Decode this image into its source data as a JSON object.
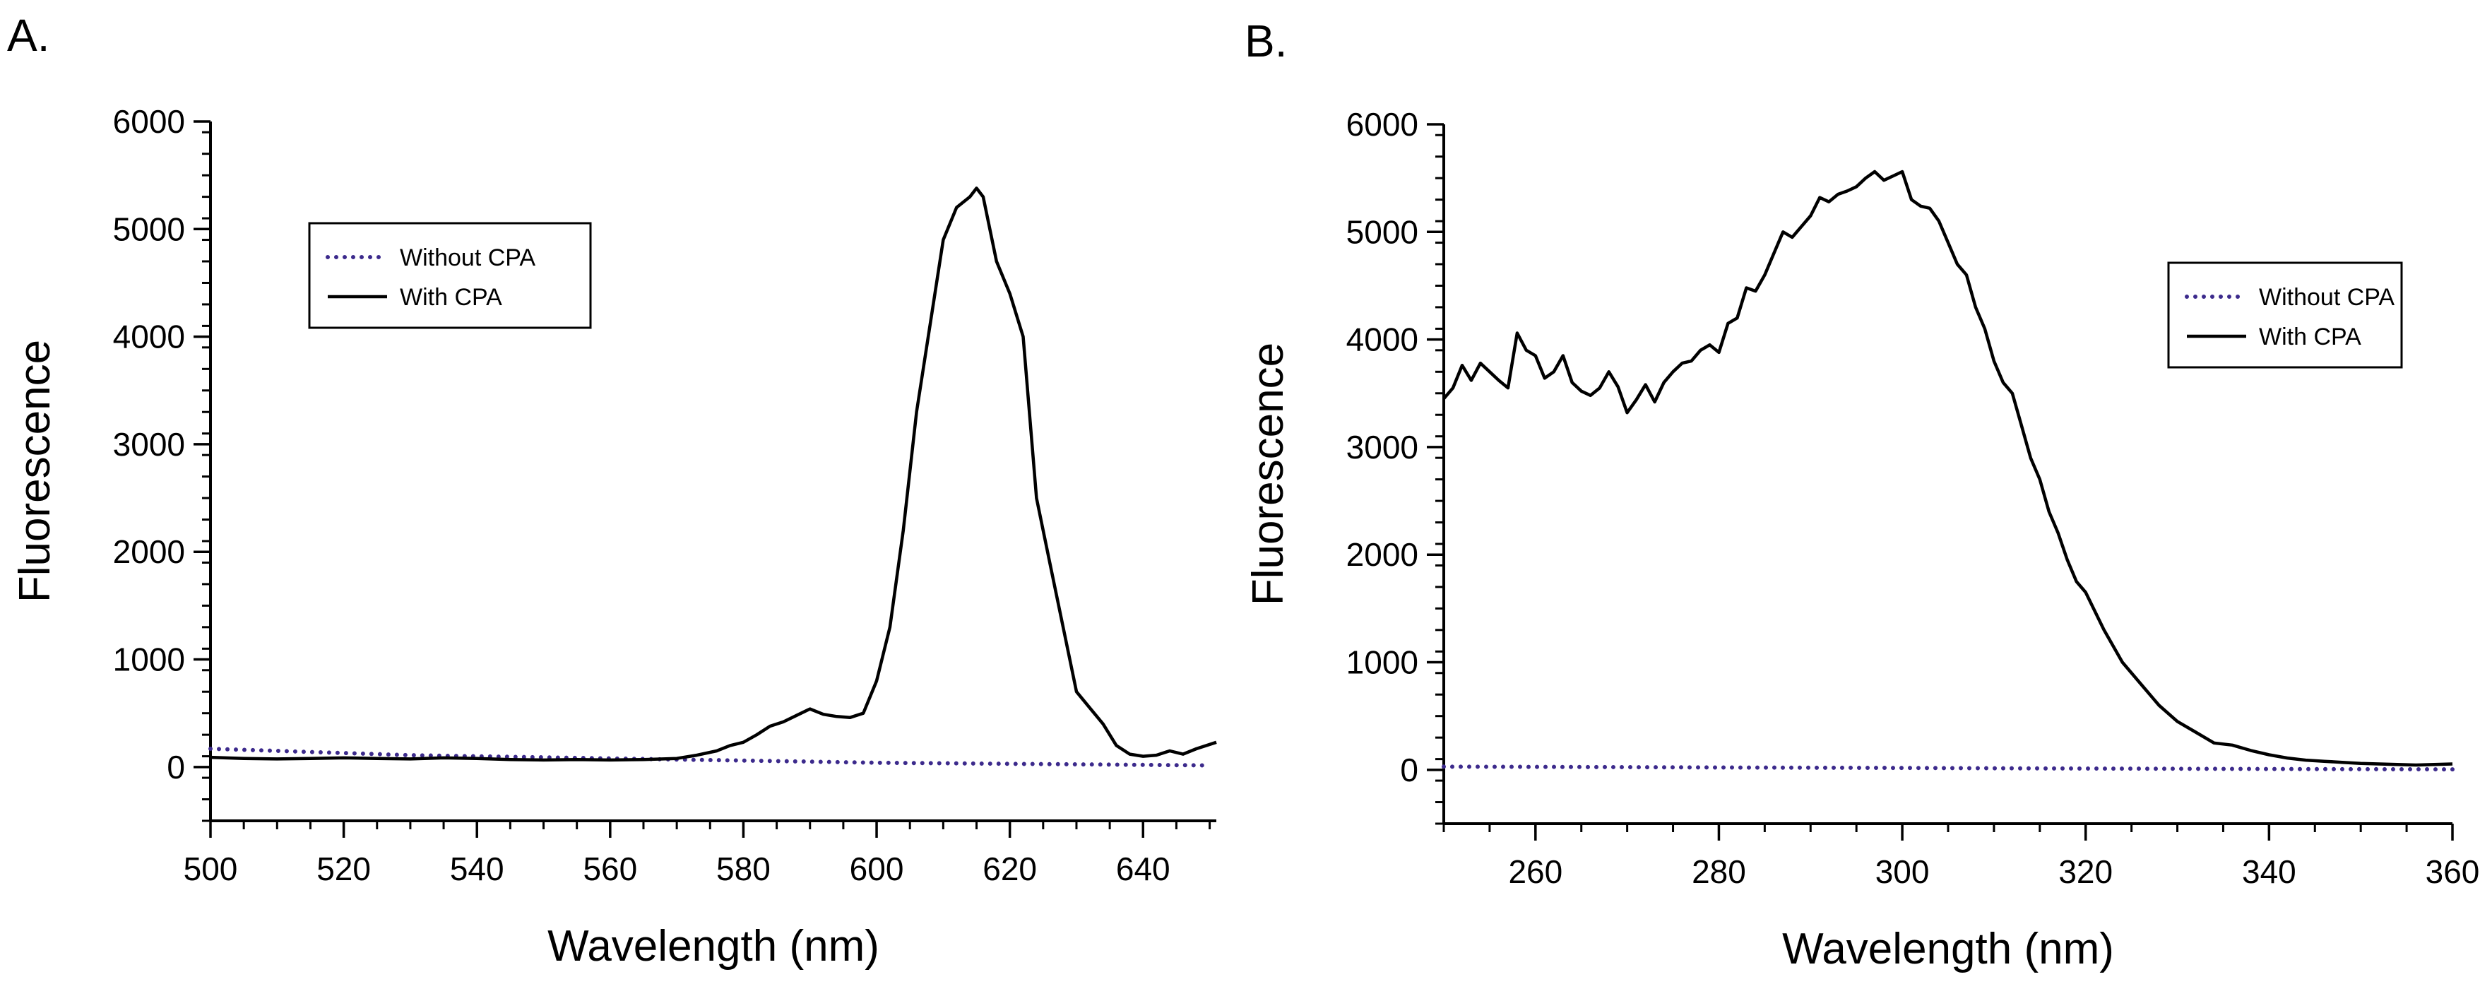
{
  "figure": {
    "panels": [
      {
        "label": "A."
      },
      {
        "label": "B."
      }
    ]
  },
  "chart_data": [
    {
      "type": "line",
      "panel": "A.",
      "xlabel": "Wavelength (nm)",
      "ylabel": "Fluorescence",
      "xlim": [
        500,
        651
      ],
      "ylim": [
        -500,
        6000
      ],
      "xticks": [
        500,
        520,
        540,
        560,
        580,
        600,
        620,
        640
      ],
      "yticks": [
        0,
        1000,
        2000,
        3000,
        4000,
        5000,
        6000
      ],
      "legend_position": "upper-left",
      "series": [
        {
          "name": "Without CPA",
          "style": "dotted",
          "color": "#3c2a8c",
          "x": [
            500,
            510,
            520,
            530,
            540,
            550,
            560,
            570,
            580,
            590,
            600,
            610,
            620,
            630,
            640,
            650
          ],
          "y": [
            170,
            150,
            130,
            110,
            100,
            90,
            80,
            70,
            60,
            50,
            40,
            35,
            30,
            25,
            20,
            15
          ]
        },
        {
          "name": "With CPA",
          "style": "solid",
          "color": "#000000",
          "x": [
            500,
            505,
            510,
            515,
            520,
            525,
            530,
            535,
            540,
            545,
            550,
            555,
            560,
            565,
            570,
            573,
            576,
            578,
            580,
            582,
            584,
            586,
            588,
            590,
            592,
            594,
            596,
            598,
            600,
            602,
            604,
            606,
            608,
            610,
            612,
            614,
            615,
            616,
            618,
            620,
            622,
            624,
            626,
            628,
            630,
            632,
            634,
            636,
            638,
            640,
            642,
            644,
            646,
            648,
            651
          ],
          "y": [
            90,
            80,
            75,
            80,
            85,
            80,
            75,
            85,
            80,
            70,
            65,
            70,
            65,
            70,
            80,
            110,
            150,
            200,
            230,
            300,
            380,
            420,
            480,
            540,
            490,
            470,
            460,
            500,
            800,
            1300,
            2200,
            3300,
            4100,
            4900,
            5200,
            5300,
            5380,
            5300,
            4700,
            4400,
            4000,
            2500,
            1900,
            1300,
            700,
            550,
            400,
            200,
            120,
            100,
            110,
            150,
            120,
            170,
            230
          ]
        }
      ]
    },
    {
      "type": "line",
      "panel": "B.",
      "xlabel": "Wavelength (nm)",
      "ylabel": "Fluorescence",
      "xlim": [
        250,
        360
      ],
      "ylim": [
        -500,
        6000
      ],
      "xticks": [
        260,
        280,
        300,
        320,
        340,
        360
      ],
      "yticks": [
        0,
        1000,
        2000,
        3000,
        4000,
        5000,
        6000
      ],
      "legend_position": "right",
      "series": [
        {
          "name": "Without CPA",
          "style": "dotted",
          "color": "#3c2a8c",
          "x": [
            250,
            260,
            270,
            280,
            290,
            300,
            310,
            320,
            330,
            340,
            350,
            360
          ],
          "y": [
            30,
            28,
            25,
            22,
            20,
            18,
            15,
            12,
            10,
            8,
            6,
            5
          ]
        },
        {
          "name": "With CPA",
          "style": "solid",
          "color": "#000000",
          "x": [
            250,
            251,
            252,
            253,
            254,
            255,
            256,
            257,
            258,
            259,
            260,
            261,
            262,
            263,
            264,
            265,
            266,
            267,
            268,
            269,
            270,
            271,
            272,
            273,
            274,
            275,
            276,
            277,
            278,
            279,
            280,
            281,
            282,
            283,
            284,
            285,
            286,
            287,
            288,
            289,
            290,
            291,
            292,
            293,
            294,
            295,
            296,
            297,
            298,
            299,
            300,
            301,
            302,
            303,
            304,
            305,
            306,
            307,
            308,
            309,
            310,
            311,
            312,
            313,
            314,
            315,
            316,
            317,
            318,
            319,
            320,
            322,
            324,
            326,
            328,
            330,
            332,
            334,
            336,
            338,
            340,
            342,
            344,
            346,
            348,
            350,
            352,
            354,
            356,
            358,
            360
          ],
          "y": [
            3450,
            3550,
            3760,
            3620,
            3780,
            3700,
            3620,
            3550,
            4060,
            3900,
            3850,
            3640,
            3700,
            3850,
            3600,
            3520,
            3480,
            3550,
            3700,
            3560,
            3320,
            3440,
            3580,
            3420,
            3600,
            3700,
            3780,
            3800,
            3900,
            3950,
            3880,
            4150,
            4200,
            4480,
            4450,
            4600,
            4800,
            5000,
            4950,
            5050,
            5150,
            5320,
            5280,
            5350,
            5380,
            5420,
            5500,
            5560,
            5480,
            5520,
            5560,
            5300,
            5240,
            5220,
            5100,
            4900,
            4700,
            4600,
            4300,
            4100,
            3800,
            3600,
            3500,
            3200,
            2900,
            2700,
            2400,
            2200,
            1950,
            1750,
            1650,
            1300,
            1000,
            800,
            600,
            450,
            350,
            250,
            230,
            180,
            140,
            110,
            90,
            80,
            70,
            60,
            55,
            50,
            45,
            50,
            55
          ]
        }
      ]
    }
  ]
}
